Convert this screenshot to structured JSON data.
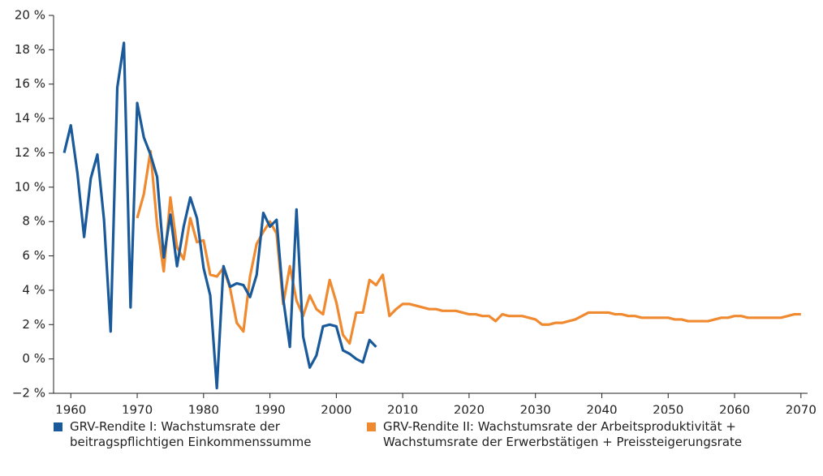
{
  "chart_data": {
    "type": "line",
    "xlim": [
      1957.4,
      2071
    ],
    "xticks": [
      1960,
      1970,
      1980,
      1990,
      2000,
      2010,
      2020,
      2030,
      2040,
      2050,
      2060,
      2070
    ],
    "ylim": [
      -2,
      20
    ],
    "yticks": [
      {
        "value": -2,
        "label": "−2 %"
      },
      {
        "value": 0,
        "label": "0 %"
      },
      {
        "value": 2,
        "label": "2 %"
      },
      {
        "value": 4,
        "label": "4 %"
      },
      {
        "value": 6,
        "label": "6 %"
      },
      {
        "value": 8,
        "label": "8 %"
      },
      {
        "value": 10,
        "label": "10 %"
      },
      {
        "value": 12,
        "label": "12 %"
      },
      {
        "value": 14,
        "label": "14 %"
      },
      {
        "value": 16,
        "label": "16 %"
      },
      {
        "value": 18,
        "label": "18 %"
      },
      {
        "value": 20,
        "label": "20 %"
      }
    ],
    "series": [
      {
        "name": "GRV-Rendite I: Wachstumsrate der beitragspflichtigen Einkommenssumme",
        "color": "#1a5a9a",
        "x": [
          1959,
          1960,
          1961,
          1962,
          1963,
          1964,
          1965,
          1966,
          1967,
          1968,
          1969,
          1970,
          1971,
          1972,
          1973,
          1974,
          1975,
          1976,
          1977,
          1978,
          1979,
          1980,
          1981,
          1982,
          1983,
          1984,
          1985,
          1986,
          1987,
          1988,
          1989,
          1990,
          1991,
          1992,
          1993,
          1994,
          1995,
          1996,
          1997,
          1998,
          1999,
          2000,
          2001,
          2002,
          2003,
          2004,
          2005,
          2006
        ],
        "values": [
          12.0,
          13.6,
          10.8,
          7.1,
          10.5,
          11.9,
          8.1,
          1.6,
          15.8,
          18.4,
          3.0,
          14.9,
          12.9,
          11.9,
          10.6,
          5.9,
          8.4,
          5.4,
          7.7,
          9.4,
          8.2,
          5.3,
          3.7,
          -1.7,
          5.4,
          4.2,
          4.4,
          4.3,
          3.6,
          4.9,
          8.5,
          7.7,
          8.1,
          3.5,
          0.7,
          8.7,
          1.3,
          -0.5,
          0.2,
          1.9,
          2.0,
          1.9,
          0.5,
          0.3,
          0.0,
          -0.2,
          1.1,
          0.7
        ]
      },
      {
        "name": "GRV-Rendite II: Wachstumsrate der Arbeitsproduktivität + Wachstumsrate der Erwerbstätigen + Preissteigerungsrate",
        "color": "#f08a30",
        "x": [
          1970,
          1971,
          1972,
          1973,
          1974,
          1975,
          1976,
          1977,
          1978,
          1979,
          1980,
          1981,
          1982,
          1983,
          1984,
          1985,
          1986,
          1987,
          1988,
          1989,
          1990,
          1991,
          1992,
          1993,
          1994,
          1995,
          1996,
          1997,
          1998,
          1999,
          2000,
          2001,
          2002,
          2003,
          2004,
          2005,
          2006,
          2007,
          2008,
          2009,
          2010,
          2011,
          2012,
          2013,
          2014,
          2015,
          2016,
          2017,
          2018,
          2019,
          2020,
          2021,
          2022,
          2023,
          2024,
          2025,
          2026,
          2027,
          2028,
          2029,
          2030,
          2031,
          2032,
          2033,
          2034,
          2035,
          2036,
          2037,
          2038,
          2039,
          2040,
          2041,
          2042,
          2043,
          2044,
          2045,
          2046,
          2047,
          2048,
          2049,
          2050,
          2051,
          2052,
          2053,
          2054,
          2055,
          2056,
          2057,
          2058,
          2059,
          2060,
          2061,
          2062,
          2063,
          2064,
          2065,
          2066,
          2067,
          2068,
          2069,
          2070
        ],
        "values": [
          8.2,
          9.6,
          12.1,
          7.8,
          5.1,
          9.4,
          6.5,
          5.8,
          8.2,
          6.8,
          6.9,
          4.9,
          4.8,
          5.3,
          4.1,
          2.1,
          1.6,
          4.8,
          6.7,
          7.4,
          8.0,
          7.3,
          3.2,
          5.4,
          3.4,
          2.5,
          3.7,
          2.9,
          2.6,
          4.6,
          3.3,
          1.4,
          0.9,
          2.7,
          2.7,
          4.6,
          4.3,
          4.9,
          2.5,
          2.9,
          3.2,
          3.2,
          3.1,
          3.0,
          2.9,
          2.9,
          2.8,
          2.8,
          2.8,
          2.7,
          2.6,
          2.6,
          2.5,
          2.5,
          2.2,
          2.6,
          2.5,
          2.5,
          2.5,
          2.4,
          2.3,
          2.0,
          2.0,
          2.1,
          2.1,
          2.2,
          2.3,
          2.5,
          2.7,
          2.7,
          2.7,
          2.7,
          2.6,
          2.6,
          2.5,
          2.5,
          2.4,
          2.4,
          2.4,
          2.4,
          2.4,
          2.3,
          2.3,
          2.2,
          2.2,
          2.2,
          2.2,
          2.3,
          2.4,
          2.4,
          2.5,
          2.5,
          2.4,
          2.4,
          2.4,
          2.4,
          2.4,
          2.4,
          2.5,
          2.6,
          2.6
        ]
      }
    ]
  }
}
